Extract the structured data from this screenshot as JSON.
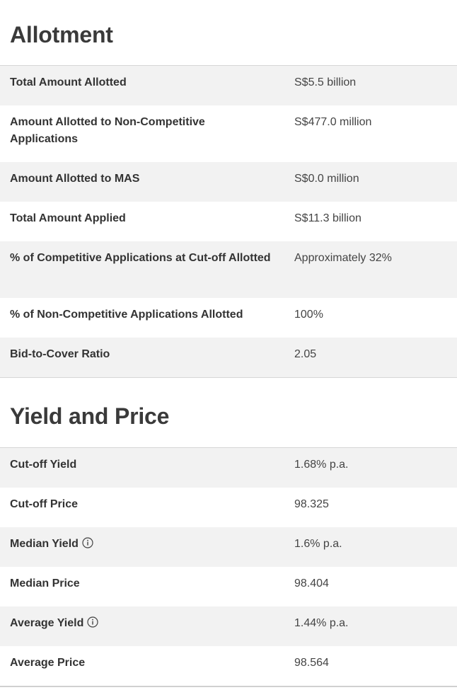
{
  "allotment": {
    "title": "Allotment",
    "rows": [
      {
        "label": "Total Amount Allotted",
        "value": "S$5.5 billion"
      },
      {
        "label": "Amount Allotted to Non-Competitive Applications",
        "value": "S$477.0 million"
      },
      {
        "label": "Amount Allotted to MAS",
        "value": "S$0.0 million"
      },
      {
        "label": "Total Amount Applied",
        "value": "S$11.3 billion"
      },
      {
        "label": "% of Competitive Applications at Cut-off Allotted",
        "value": "Approximately 32%"
      },
      {
        "label": "% of Non-Competitive Applications Allotted",
        "value": "100%"
      },
      {
        "label": "Bid-to-Cover Ratio",
        "value": "2.05"
      }
    ]
  },
  "yield_price": {
    "title": "Yield and Price",
    "rows": [
      {
        "label": "Cut-off Yield",
        "value": "1.68% p.a."
      },
      {
        "label": "Cut-off Price",
        "value": "98.325"
      },
      {
        "label": "Median Yield",
        "value": "1.6% p.a.",
        "icon": "info-icon"
      },
      {
        "label": "Median Price",
        "value": "98.404"
      },
      {
        "label": "Average Yield",
        "value": "1.44% p.a.",
        "icon": "info-icon"
      },
      {
        "label": "Average Price",
        "value": "98.564"
      }
    ]
  }
}
